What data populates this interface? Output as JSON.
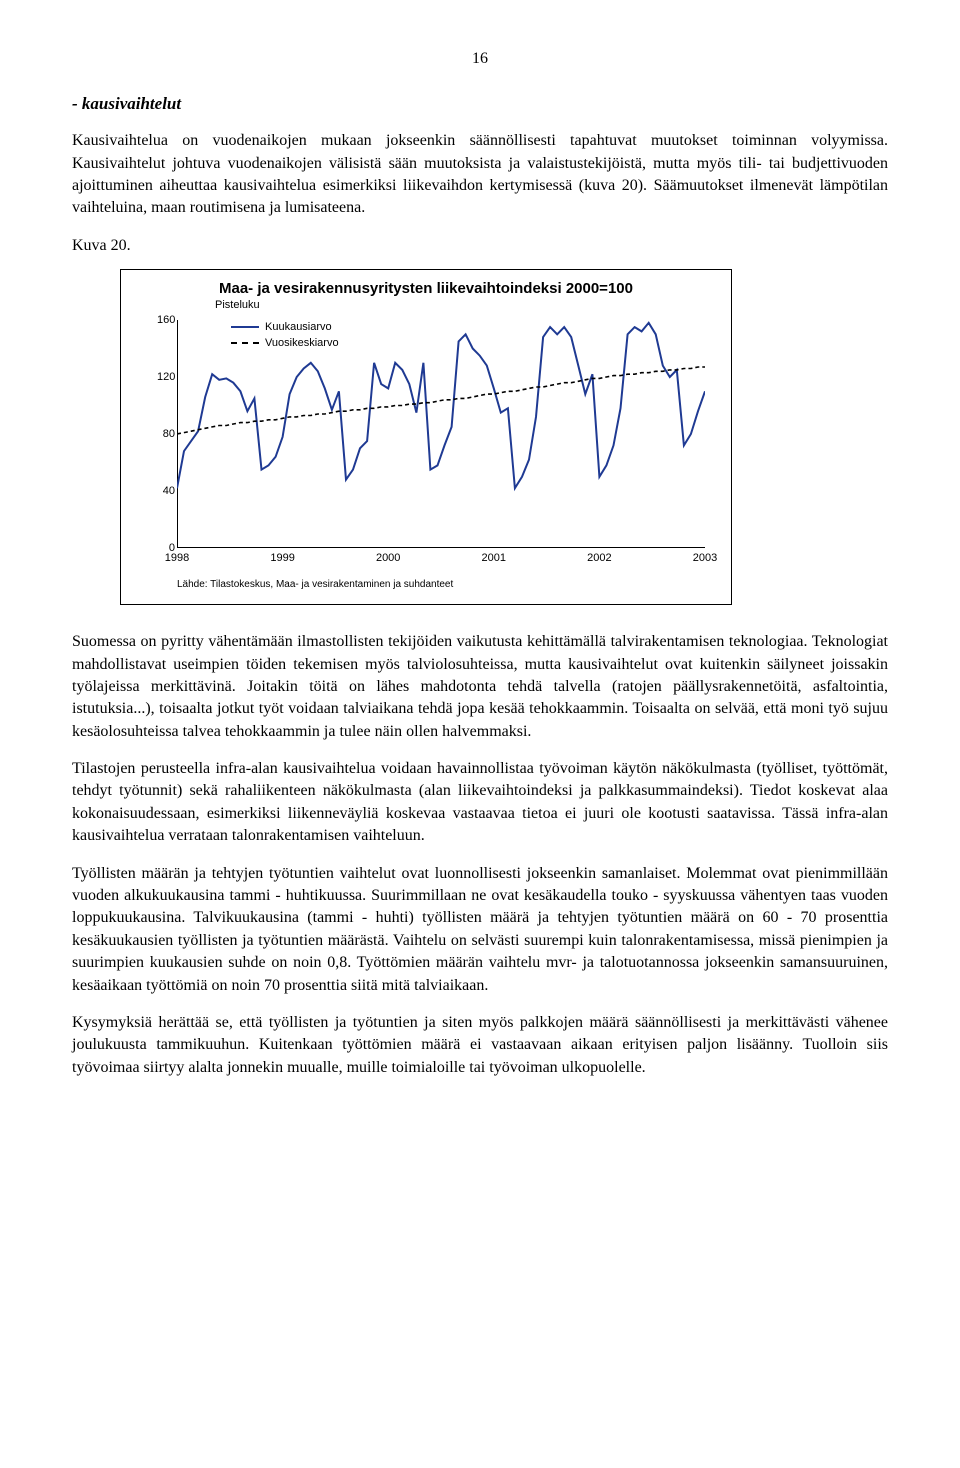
{
  "page_number": "16",
  "heading": "- kausivaihtelut",
  "intro1": "Kausivaihtelua on vuodenaikojen mukaan jokseenkin säännöllisesti tapahtuvat muutokset toiminnan volyymissa. Kausivaihtelut johtuva vuodenaikojen välisistä sään muutoksista ja valaistustekijöistä, mutta myös tili- tai budjettivuoden ajoittuminen aiheuttaa kausivaihtelua esimerkiksi liikevaihdon kertymisessä (kuva 20). Säämuutokset ilmenevät lämpötilan vaihteluina, maan routimisena ja lumisateena.",
  "kuva_label": "Kuva 20.",
  "chart": {
    "type": "line",
    "title": "Maa- ja vesirakennusyritysten liikevaihtoindeksi 2000=100",
    "subtitle": "Pisteluku",
    "legend_monthly": "Kuukausiarvo",
    "legend_annual": "Vuosikeskiarvo",
    "y": {
      "min": 0,
      "max": 160,
      "ticks": [
        0,
        40,
        80,
        120,
        160
      ]
    },
    "x_ticks": [
      "1998",
      "1999",
      "2000",
      "2001",
      "2002",
      "2003"
    ],
    "colors": {
      "monthly": "#1f3a93",
      "annual": "#000000",
      "axis": "#000000"
    },
    "monthly_values": [
      42,
      68,
      75,
      82,
      106,
      122,
      118,
      119,
      116,
      110,
      96,
      105,
      55,
      58,
      64,
      78,
      108,
      120,
      126,
      130,
      124,
      112,
      97,
      110,
      48,
      55,
      70,
      75,
      130,
      115,
      112,
      130,
      125,
      115,
      95,
      130,
      55,
      58,
      72,
      85,
      145,
      150,
      140,
      135,
      128,
      112,
      95,
      98,
      42,
      50,
      62,
      92,
      148,
      155,
      150,
      155,
      148,
      128,
      108,
      122,
      50,
      58,
      72,
      98,
      150,
      155,
      152,
      158,
      150,
      128,
      120,
      125,
      72,
      80,
      96,
      110
    ],
    "annual_values": [
      80,
      81,
      82,
      83,
      84,
      85,
      86,
      86,
      87,
      88,
      88,
      89,
      89,
      90,
      90,
      91,
      92,
      92,
      93,
      93,
      94,
      94,
      95,
      96,
      96,
      97,
      97,
      98,
      98,
      99,
      99,
      100,
      100,
      101,
      101,
      102,
      102,
      103,
      104,
      104,
      105,
      105,
      106,
      107,
      108,
      108,
      109,
      110,
      110,
      111,
      112,
      113,
      113,
      114,
      115,
      116,
      116,
      117,
      118,
      119,
      119,
      120,
      121,
      121,
      122,
      122,
      123,
      123,
      124,
      124,
      125,
      125,
      126,
      126,
      127,
      127
    ],
    "source": "Lähde: Tilastokeskus, Maa- ja vesirakentaminen ja suhdanteet"
  },
  "para1": "Suomessa on pyritty vähentämään ilmastollisten tekijöiden vaikutusta kehittämällä talvirakentamisen teknologiaa. Teknologiat mahdollistavat useimpien töiden tekemisen myös talviolosuhteissa, mutta kausivaihtelut ovat kuitenkin säilyneet joissakin työlajeissa merkittävinä. Joitakin töitä on lähes mahdotonta tehdä talvella (ratojen päällysrakennetöitä, asfaltointia, istutuksia...), toisaalta jotkut työt voidaan talviaikana tehdä jopa kesää tehokkaammin. Toisaalta on selvää, että moni työ sujuu kesäolosuhteissa talvea tehokkaammin ja tulee näin ollen halvemmaksi.",
  "para2": "Tilastojen perusteella infra-alan kausivaihtelua voidaan havainnollistaa työvoiman käytön näkökulmasta (työlliset, työttömät, tehdyt työtunnit) sekä rahaliikenteen näkökulmasta (alan liikevaihtoindeksi ja palkkasummaindeksi). Tiedot koskevat alaa kokonaisuudessaan, esimerkiksi liikenneväyliä koskevaa vastaavaa tietoa ei juuri ole kootusti saatavissa. Tässä infra-alan kausivaihtelua verrataan talonrakentamisen vaihteluun.",
  "para3": "Työllisten määrän ja tehtyjen työtuntien vaihtelut ovat luonnollisesti jokseenkin samanlaiset. Molemmat ovat pienimmillään vuoden alkukuukausina tammi - huhtikuussa. Suurimmillaan ne ovat kesäkaudella touko - syyskuussa vähentyen taas vuoden loppukuukausina. Talvikuukausina (tammi - huhti) työllisten määrä ja tehtyjen työtuntien määrä on 60 - 70 prosenttia kesäkuukausien työllisten ja työtuntien määrästä. Vaihtelu on selvästi suurempi kuin talonrakentamisessa, missä pienimpien ja suurimpien kuukausien suhde on noin 0,8. Työttömien määrän vaihtelu mvr- ja talotuotannossa jokseenkin samansuuruinen, kesäaikaan työttömiä on noin 70 prosenttia siitä mitä talviaikaan.",
  "para4": "Kysymyksiä herättää se, että työllisten ja työtuntien ja siten myös palkkojen määrä säännöllisesti ja merkittävästi vähenee joulukuusta tammikuuhun. Kuitenkaan työttömien määrä ei vastaavaan aikaan erityisen paljon lisäänny. Tuolloin siis työvoimaa siirtyy alalta jonnekin muualle, muille toimialoille tai työvoiman ulkopuolelle."
}
